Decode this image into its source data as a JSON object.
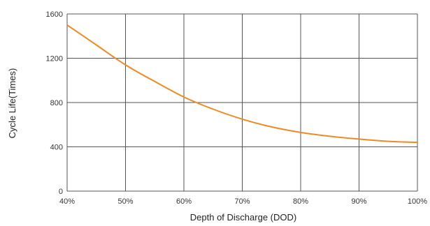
{
  "chart_data": {
    "type": "line",
    "title": "",
    "xlabel": "Depth of Discharge (DOD)",
    "ylabel": "Cycle Life(Times)",
    "x_ticks": [
      "40%",
      "50%",
      "60%",
      "70%",
      "80%",
      "90%",
      "100%"
    ],
    "y_ticks": [
      "0",
      "400",
      "800",
      "1200",
      "1600"
    ],
    "xlim": [
      40,
      100
    ],
    "ylim": [
      0,
      1600
    ],
    "grid": true,
    "legend": "none",
    "series": [
      {
        "color": "#ee8a24",
        "x": [
          40,
          45,
          50,
          55,
          60,
          65,
          70,
          75,
          80,
          85,
          90,
          95,
          100
        ],
        "y": [
          1500,
          1320,
          1140,
          990,
          850,
          740,
          650,
          580,
          530,
          495,
          470,
          450,
          440
        ]
      }
    ]
  }
}
